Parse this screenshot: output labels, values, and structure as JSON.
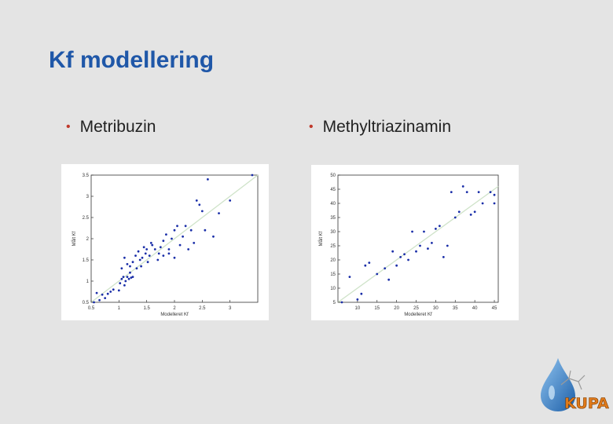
{
  "slide": {
    "title": "Kf modellering",
    "bullets": [
      "Metribuzin",
      "Methyltriazinamin"
    ]
  },
  "logo": {
    "text": "KUPA"
  },
  "colors": {
    "title": "#1f57a8",
    "bullet_dot": "#c0392b",
    "points": "#1a2ea8",
    "fit_line": "#cfe3c9"
  },
  "chart_data": [
    {
      "type": "scatter",
      "title": "",
      "xlabel": "Modelleret Kf",
      "ylabel": "Målt Kf",
      "xlim": [
        0.5,
        3.5
      ],
      "ylim": [
        0.5,
        3.5
      ],
      "x_ticks": [
        0.5,
        1,
        1.5,
        2,
        2.5,
        3
      ],
      "x_tick_labels": [
        "0.5",
        "1",
        "1.5",
        "2",
        "2.5",
        "3"
      ],
      "y_ticks": [
        0.5,
        1,
        1.5,
        2,
        2.5,
        3,
        3.5
      ],
      "y_tick_labels": [
        "0.5",
        "1",
        "1.5",
        "2",
        "2.5",
        "3",
        "3.5"
      ],
      "grid": false,
      "fit_line": [
        [
          0.5,
          0.5
        ],
        [
          3.5,
          3.5
        ]
      ],
      "points": [
        [
          0.55,
          0.5
        ],
        [
          0.6,
          0.72
        ],
        [
          0.65,
          0.55
        ],
        [
          0.7,
          0.68
        ],
        [
          0.75,
          0.6
        ],
        [
          0.8,
          0.7
        ],
        [
          0.85,
          0.75
        ],
        [
          0.9,
          0.8
        ],
        [
          1.0,
          0.78
        ],
        [
          1.02,
          0.95
        ],
        [
          1.05,
          1.05
        ],
        [
          1.08,
          1.1
        ],
        [
          1.1,
          0.9
        ],
        [
          1.12,
          1.0
        ],
        [
          1.15,
          1.1
        ],
        [
          1.18,
          1.05
        ],
        [
          1.2,
          1.2
        ],
        [
          1.22,
          1.08
        ],
        [
          1.25,
          1.1
        ],
        [
          1.05,
          1.3
        ],
        [
          1.1,
          1.55
        ],
        [
          1.15,
          1.4
        ],
        [
          1.2,
          1.35
        ],
        [
          1.25,
          1.45
        ],
        [
          1.3,
          1.6
        ],
        [
          1.32,
          1.3
        ],
        [
          1.35,
          1.7
        ],
        [
          1.38,
          1.5
        ],
        [
          1.4,
          1.35
        ],
        [
          1.42,
          1.55
        ],
        [
          1.45,
          1.8
        ],
        [
          1.48,
          1.65
        ],
        [
          1.5,
          1.75
        ],
        [
          1.52,
          1.45
        ],
        [
          1.55,
          1.6
        ],
        [
          1.58,
          1.9
        ],
        [
          1.6,
          1.85
        ],
        [
          1.65,
          1.75
        ],
        [
          1.7,
          1.5
        ],
        [
          1.72,
          1.65
        ],
        [
          1.75,
          1.8
        ],
        [
          1.8,
          1.95
        ],
        [
          1.85,
          2.1
        ],
        [
          1.9,
          1.75
        ],
        [
          1.95,
          2.0
        ],
        [
          2.0,
          2.2
        ],
        [
          2.05,
          2.3
        ],
        [
          2.1,
          1.85
        ],
        [
          2.15,
          2.05
        ],
        [
          2.2,
          2.3
        ],
        [
          2.25,
          1.75
        ],
        [
          2.3,
          2.2
        ],
        [
          1.8,
          1.6
        ],
        [
          1.9,
          1.65
        ],
        [
          2.0,
          1.55
        ],
        [
          2.35,
          1.9
        ],
        [
          2.4,
          2.9
        ],
        [
          2.45,
          2.8
        ],
        [
          2.5,
          2.65
        ],
        [
          2.55,
          2.2
        ],
        [
          2.6,
          3.4
        ],
        [
          2.7,
          2.05
        ],
        [
          2.8,
          2.6
        ],
        [
          3.0,
          2.9
        ],
        [
          3.4,
          3.5
        ]
      ]
    },
    {
      "type": "scatter",
      "title": "",
      "xlabel": "Modelleret Kf",
      "ylabel": "Målt Kf",
      "xlim": [
        5,
        46
      ],
      "ylim": [
        5,
        50
      ],
      "x_ticks": [
        10,
        15,
        20,
        25,
        30,
        35,
        40,
        45
      ],
      "x_tick_labels": [
        "10",
        "15",
        "20",
        "25",
        "30",
        "35",
        "40",
        "45"
      ],
      "y_ticks": [
        5,
        10,
        15,
        20,
        25,
        30,
        35,
        40,
        45,
        50
      ],
      "y_tick_labels": [
        "5",
        "10",
        "15",
        "20",
        "25",
        "30",
        "35",
        "40",
        "45",
        "50"
      ],
      "grid": false,
      "fit_line": [
        [
          5,
          5
        ],
        [
          46,
          46
        ]
      ],
      "points": [
        [
          6,
          5
        ],
        [
          8,
          14
        ],
        [
          10,
          6
        ],
        [
          11,
          8
        ],
        [
          12,
          18
        ],
        [
          13,
          19
        ],
        [
          15,
          15
        ],
        [
          17,
          17
        ],
        [
          18,
          13
        ],
        [
          19,
          23
        ],
        [
          20,
          18
        ],
        [
          21,
          21
        ],
        [
          22,
          22
        ],
        [
          23,
          20
        ],
        [
          24,
          30
        ],
        [
          25,
          23
        ],
        [
          26,
          25
        ],
        [
          27,
          30
        ],
        [
          28,
          24
        ],
        [
          29,
          26
        ],
        [
          30,
          31
        ],
        [
          31,
          32
        ],
        [
          32,
          21
        ],
        [
          33,
          25
        ],
        [
          34,
          44
        ],
        [
          35,
          35
        ],
        [
          36,
          37
        ],
        [
          37,
          46
        ],
        [
          38,
          44
        ],
        [
          39,
          36
        ],
        [
          40,
          37
        ],
        [
          41,
          44
        ],
        [
          42,
          40
        ],
        [
          44,
          44
        ],
        [
          45,
          43
        ],
        [
          45,
          40
        ]
      ]
    }
  ]
}
